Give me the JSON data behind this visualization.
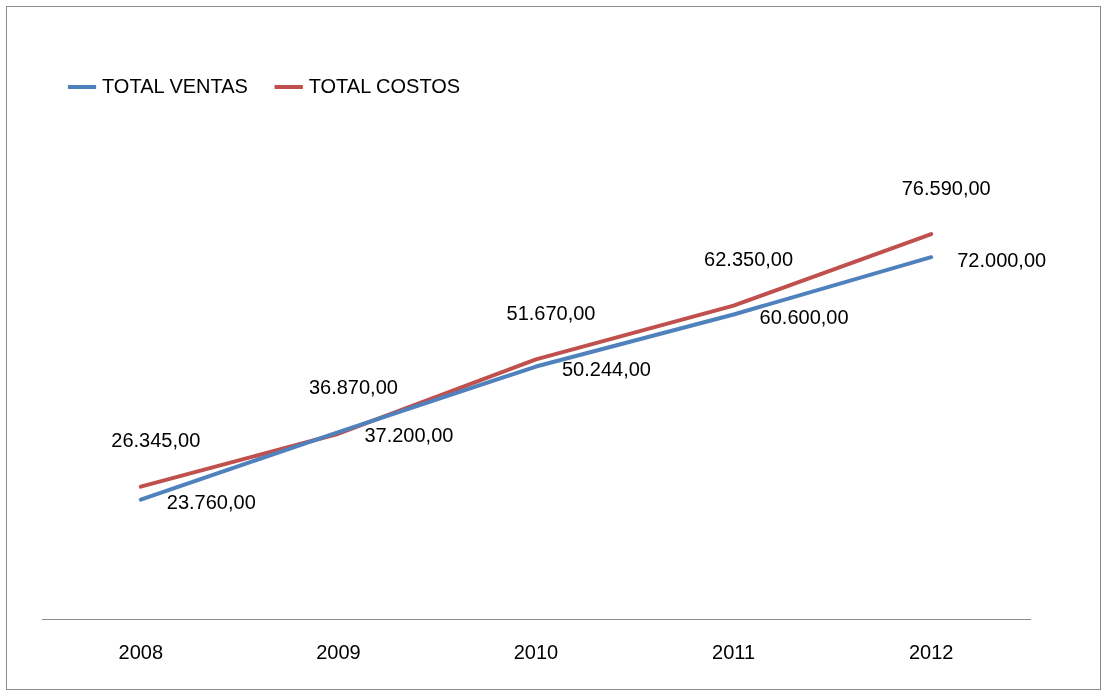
{
  "chart_data": {
    "type": "line",
    "categories": [
      "2008",
      "2009",
      "2010",
      "2011",
      "2012"
    ],
    "series": [
      {
        "name": "TOTAL VENTAS",
        "color": "#4f81bd",
        "values": [
          23760,
          37200,
          50244,
          60600,
          72000
        ],
        "value_labels": [
          "23.760,00",
          "37.200,00",
          "50.244,00",
          "60.600,00",
          "72.000,00"
        ]
      },
      {
        "name": "TOTAL COSTOS",
        "color": "#c0504d",
        "values": [
          26345,
          36870,
          51670,
          62350,
          76590
        ],
        "value_labels": [
          "26.345,00",
          "36.870,00",
          "51.670,00",
          "62.350,00",
          "76.590,00"
        ]
      }
    ],
    "tick_labels": "x",
    "legend": "top left",
    "grid": false,
    "marker": "none",
    "line_style": "solid"
  }
}
